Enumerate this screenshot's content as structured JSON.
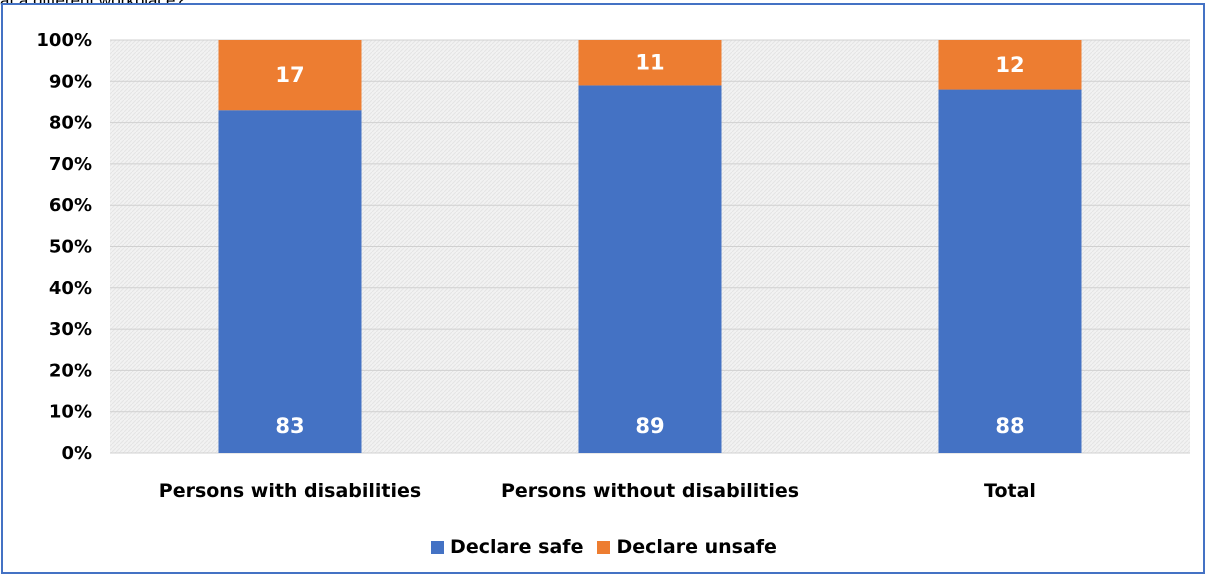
{
  "caption": "at a different workplace?",
  "chart_data": {
    "type": "bar",
    "stacked": true,
    "categories": [
      "Persons with disabilities",
      "Persons without disabilities",
      "Total"
    ],
    "series": [
      {
        "name": "Declare safe",
        "values": [
          83,
          89,
          88
        ],
        "color": "#4472c4"
      },
      {
        "name": "Declare unsafe",
        "values": [
          17,
          11,
          12
        ],
        "color": "#ed7d31"
      }
    ],
    "ylim": [
      0,
      100
    ],
    "yticks": [
      "0%",
      "10%",
      "20%",
      "30%",
      "40%",
      "50%",
      "60%",
      "70%",
      "80%",
      "90%",
      "100%"
    ],
    "grid": true,
    "legend": "bottom",
    "data_labels": true,
    "title": "",
    "xlabel": "",
    "ylabel": ""
  }
}
